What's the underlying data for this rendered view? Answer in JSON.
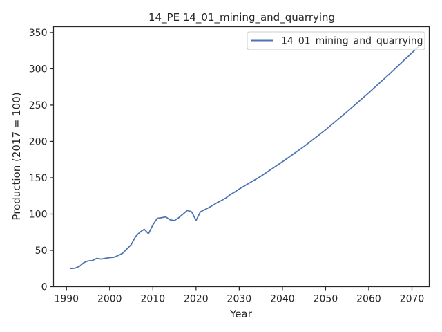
{
  "chart_data": {
    "type": "line",
    "title": "14_PE 14_01_mining_and_quarrying",
    "xlabel": "Year",
    "ylabel": "Production (2017 = 100)",
    "xlim": [
      1987,
      2074
    ],
    "ylim": [
      0,
      358
    ],
    "xticks": [
      1990,
      2000,
      2010,
      2020,
      2030,
      2040,
      2050,
      2060,
      2070
    ],
    "yticks": [
      0,
      50,
      100,
      150,
      200,
      250,
      300,
      350
    ],
    "grid": false,
    "legend_position": "top-right",
    "series": [
      {
        "name": "14_01_mining_and_quarrying",
        "color": "#4c72b0",
        "x": [
          1991,
          1992,
          1993,
          1994,
          1995,
          1996,
          1997,
          1998,
          1999,
          2000,
          2001,
          2002,
          2003,
          2004,
          2005,
          2006,
          2007,
          2008,
          2009,
          2010,
          2011,
          2012,
          2013,
          2014,
          2015,
          2016,
          2017,
          2018,
          2019,
          2020,
          2021,
          2022,
          2023,
          2024,
          2025,
          2026,
          2027,
          2028,
          2029,
          2030,
          2035,
          2040,
          2045,
          2050,
          2055,
          2060,
          2065,
          2070,
          2072
        ],
        "y": [
          25,
          25.5,
          28,
          33,
          35.5,
          36,
          39,
          38,
          39,
          40,
          40.5,
          43,
          46,
          52,
          58,
          69,
          75,
          79,
          73,
          85,
          94,
          95,
          96,
          92,
          91,
          95,
          100,
          105,
          103,
          91,
          103,
          106,
          109,
          112.5,
          116,
          119,
          122.5,
          127,
          130.5,
          134.5,
          152,
          172,
          193,
          216,
          241,
          267,
          294,
          322,
          333
        ]
      }
    ]
  }
}
